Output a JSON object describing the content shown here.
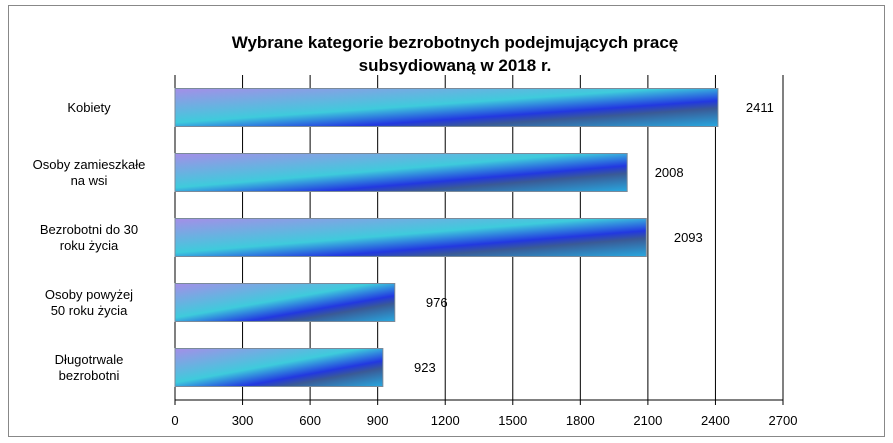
{
  "chart_data": {
    "type": "bar",
    "orientation": "horizontal",
    "title": "Wybrane kategorie bezrobotnych podejmujących pracę\nsubsydiowaną w 2018 r.",
    "categories": [
      "Kobiety",
      "Osoby zamieszkałe\nna wsi",
      "Bezrobotni do 30\nroku życia",
      "Osoby powyżej\n50 roku życia",
      "Długotrwale\nbezrobotni"
    ],
    "values": [
      2411,
      2008,
      2093,
      976,
      923
    ],
    "xlim": [
      0,
      2700
    ],
    "xticks": [
      0,
      300,
      600,
      900,
      1200,
      1500,
      1800,
      2100,
      2400,
      2700
    ],
    "grid": true
  }
}
